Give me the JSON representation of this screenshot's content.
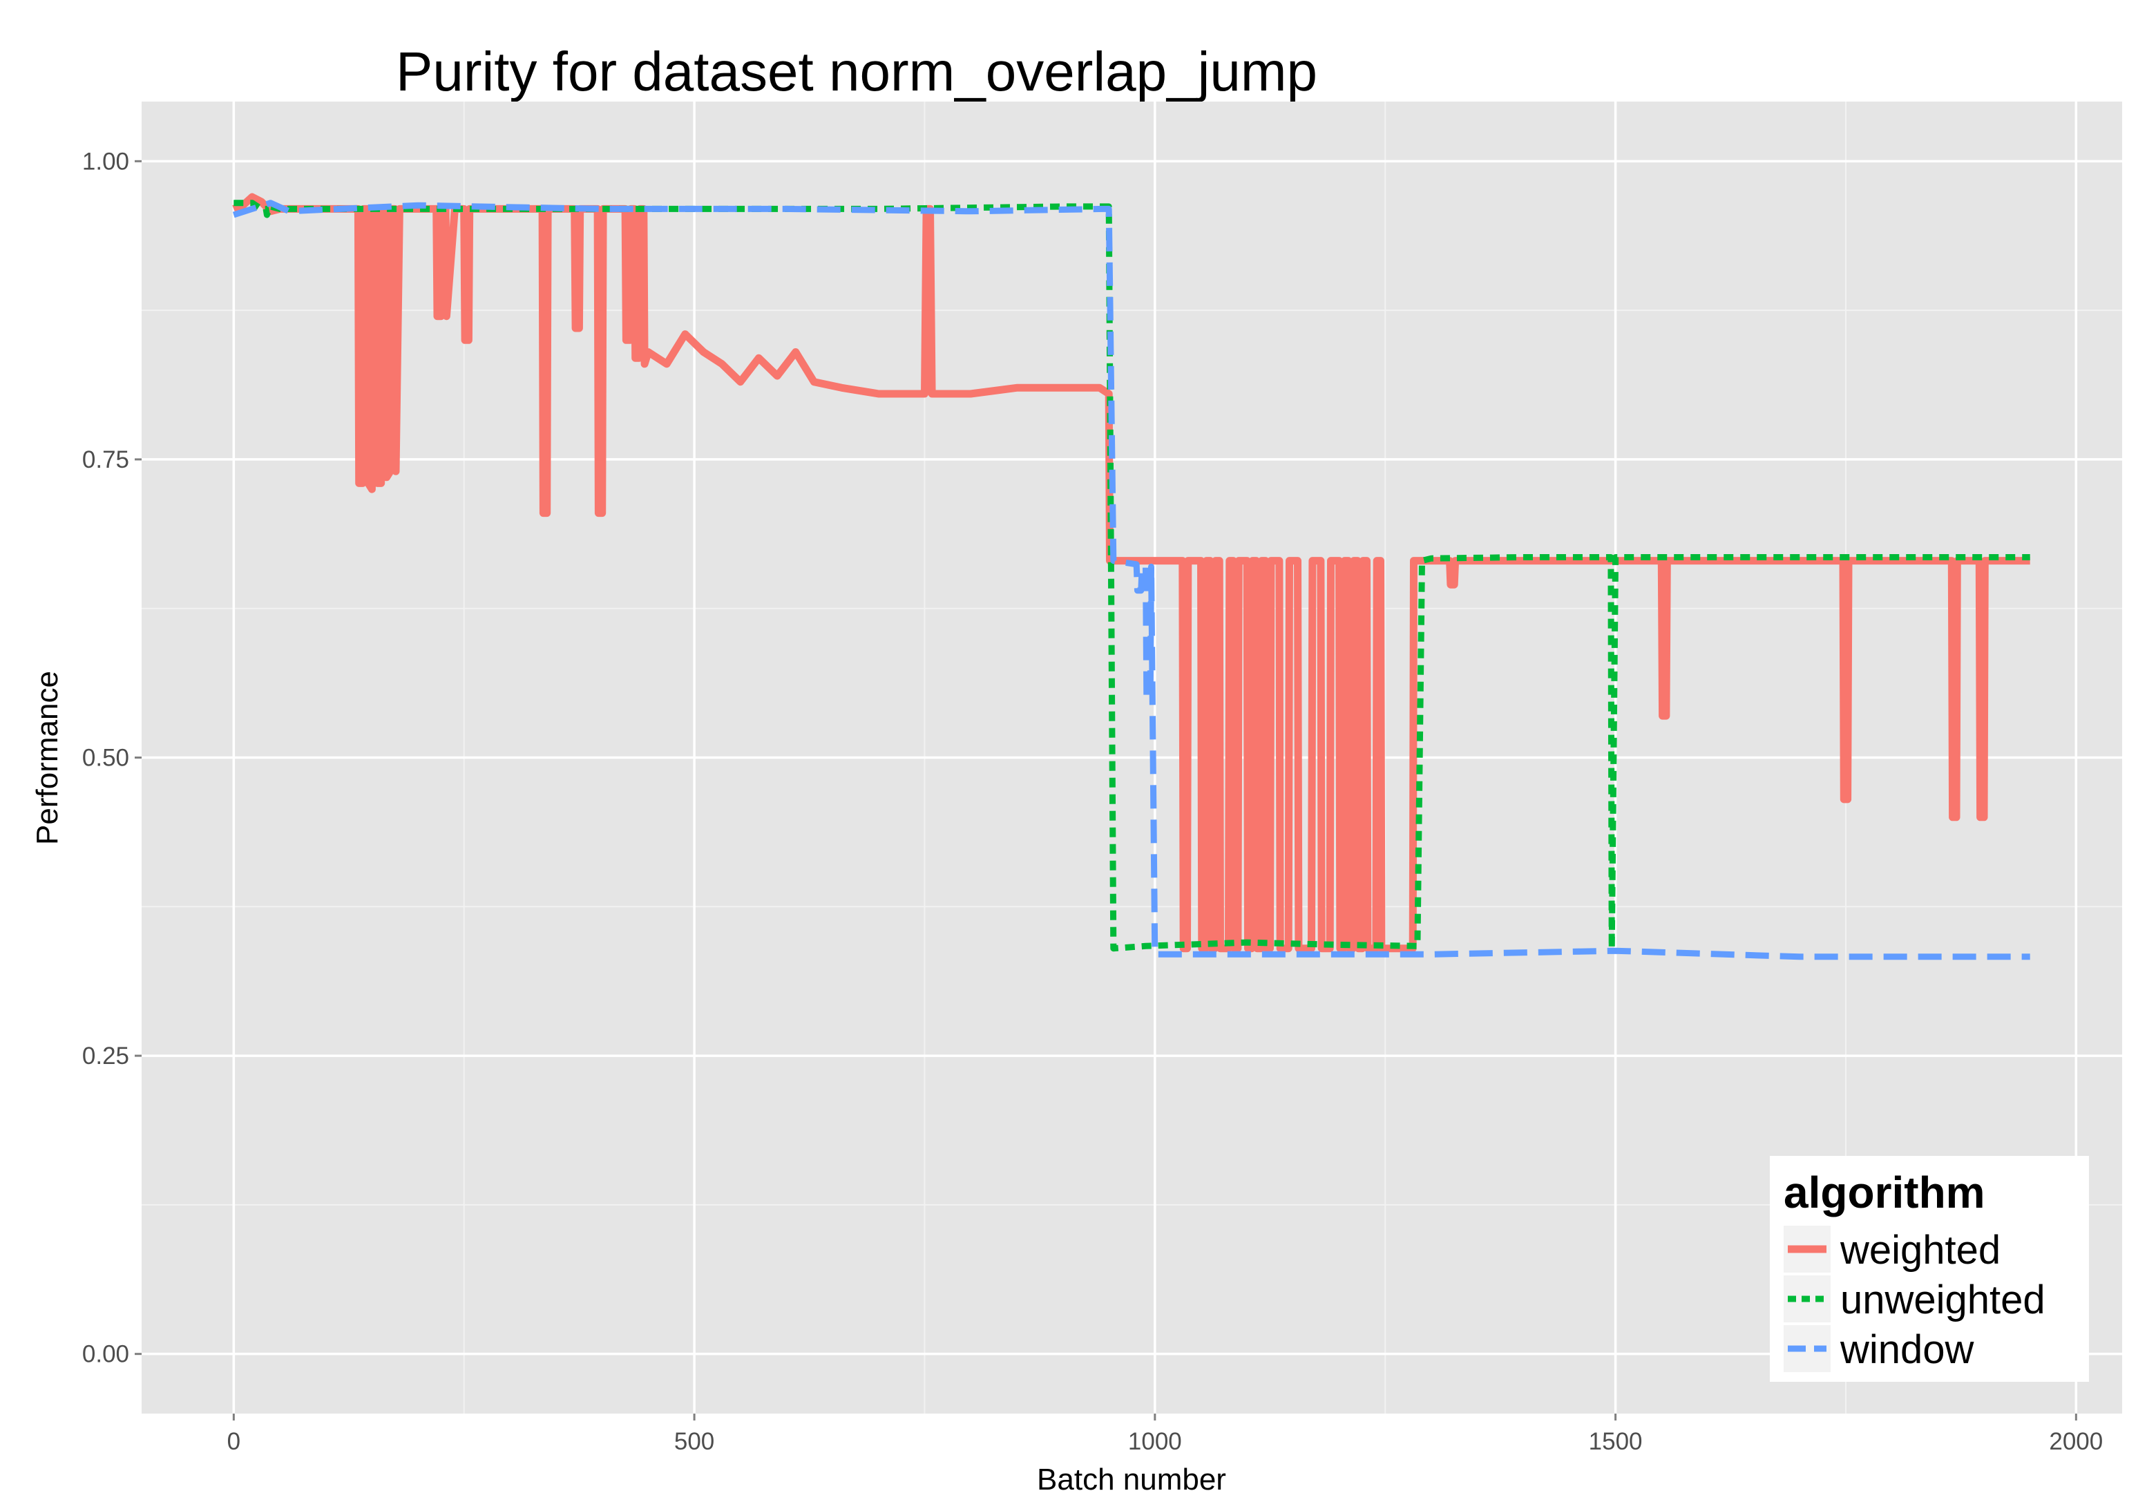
{
  "chart_data": {
    "type": "line",
    "title": "Purity for dataset norm_overlap_jump",
    "xlabel": "Batch number",
    "ylabel": "Performance",
    "xlim": [
      -100,
      2050
    ],
    "ylim": [
      -0.05,
      1.05
    ],
    "x_ticks": [
      0,
      500,
      1000,
      1500,
      2000
    ],
    "x_tick_labels": [
      "0",
      "500",
      "1000",
      "1500",
      "2000"
    ],
    "y_ticks": [
      0,
      0.25,
      0.5,
      0.75,
      1.0
    ],
    "y_tick_labels": [
      "0.00",
      "0.25",
      "0.50",
      "0.75",
      "1.00"
    ],
    "grid": true,
    "legend": {
      "title": "algorithm",
      "position": "bottom-right"
    },
    "colors": {
      "panel": "#e5e5e5",
      "grid": "#ffffff",
      "weighted": "#f8766d",
      "unweighted": "#00ba38",
      "window": "#619cff"
    },
    "series": [
      {
        "name": "weighted",
        "color": "#f8766d",
        "dash": "solid",
        "x": [
          0,
          10,
          20,
          30,
          40,
          50,
          100,
          135,
          136,
          140,
          141,
          145,
          146,
          150,
          151,
          155,
          156,
          160,
          161,
          165,
          166,
          170,
          171,
          175,
          176,
          180,
          220,
          221,
          225,
          226,
          230,
          231,
          240,
          250,
          251,
          255,
          256,
          300,
          335,
          336,
          340,
          341,
          370,
          371,
          375,
          376,
          395,
          396,
          400,
          401,
          425,
          426,
          430,
          431,
          435,
          436,
          440,
          441,
          445,
          446,
          450,
          470,
          490,
          510,
          530,
          550,
          570,
          590,
          610,
          630,
          660,
          700,
          750,
          752,
          756,
          758,
          800,
          850,
          900,
          940,
          950,
          951,
          955,
          990,
          1020,
          1030,
          1031,
          1035,
          1036,
          1040,
          1041,
          1050,
          1051,
          1055,
          1056,
          1060,
          1061,
          1065,
          1066,
          1070,
          1071,
          1080,
          1081,
          1085,
          1086,
          1090,
          1091,
          1100,
          1101,
          1105,
          1106,
          1110,
          1111,
          1115,
          1116,
          1120,
          1121,
          1125,
          1126,
          1135,
          1136,
          1145,
          1146,
          1155,
          1156,
          1170,
          1171,
          1180,
          1181,
          1190,
          1191,
          1200,
          1201,
          1205,
          1206,
          1210,
          1211,
          1215,
          1216,
          1220,
          1221,
          1225,
          1226,
          1230,
          1231,
          1240,
          1241,
          1245,
          1246,
          1250,
          1270,
          1280,
          1281,
          1290,
          1300,
          1320,
          1321,
          1325,
          1326,
          1400,
          1500,
          1550,
          1551,
          1555,
          1556,
          1600,
          1700,
          1747,
          1748,
          1752,
          1753,
          1800,
          1865,
          1866,
          1870,
          1871,
          1895,
          1896,
          1900,
          1901,
          1950
        ],
        "values": [
          0.96,
          0.963,
          0.97,
          0.966,
          0.958,
          0.96,
          0.96,
          0.96,
          0.73,
          0.73,
          0.96,
          0.96,
          0.73,
          0.725,
          0.96,
          0.96,
          0.73,
          0.73,
          0.96,
          0.96,
          0.735,
          0.74,
          0.96,
          0.96,
          0.74,
          0.96,
          0.96,
          0.87,
          0.87,
          0.96,
          0.96,
          0.87,
          0.96,
          0.96,
          0.85,
          0.85,
          0.96,
          0.96,
          0.96,
          0.705,
          0.705,
          0.96,
          0.96,
          0.86,
          0.86,
          0.96,
          0.96,
          0.705,
          0.705,
          0.96,
          0.96,
          0.85,
          0.85,
          0.96,
          0.96,
          0.835,
          0.835,
          0.96,
          0.96,
          0.83,
          0.84,
          0.83,
          0.855,
          0.84,
          0.83,
          0.815,
          0.835,
          0.82,
          0.84,
          0.815,
          0.81,
          0.805,
          0.805,
          0.96,
          0.96,
          0.805,
          0.805,
          0.81,
          0.81,
          0.81,
          0.805,
          0.665,
          0.665,
          0.665,
          0.665,
          0.665,
          0.34,
          0.34,
          0.665,
          0.665,
          0.665,
          0.665,
          0.34,
          0.34,
          0.665,
          0.665,
          0.34,
          0.34,
          0.665,
          0.665,
          0.34,
          0.34,
          0.665,
          0.665,
          0.34,
          0.34,
          0.665,
          0.665,
          0.34,
          0.34,
          0.665,
          0.665,
          0.34,
          0.34,
          0.665,
          0.665,
          0.34,
          0.34,
          0.665,
          0.665,
          0.34,
          0.34,
          0.665,
          0.665,
          0.34,
          0.34,
          0.665,
          0.665,
          0.34,
          0.34,
          0.665,
          0.665,
          0.34,
          0.34,
          0.665,
          0.665,
          0.34,
          0.34,
          0.665,
          0.665,
          0.34,
          0.34,
          0.665,
          0.665,
          0.34,
          0.34,
          0.665,
          0.665,
          0.34,
          0.34,
          0.34,
          0.34,
          0.665,
          0.665,
          0.665,
          0.665,
          0.645,
          0.645,
          0.665,
          0.665,
          0.665,
          0.665,
          0.535,
          0.535,
          0.665,
          0.665,
          0.665,
          0.665,
          0.465,
          0.465,
          0.665,
          0.665,
          0.665,
          0.45,
          0.45,
          0.665,
          0.665,
          0.45,
          0.45,
          0.665,
          0.665
        ]
      },
      {
        "name": "unweighted",
        "color": "#00ba38",
        "dash": "dotted",
        "x": [
          0,
          20,
          30,
          35,
          36,
          40,
          50,
          300,
          500,
          700,
          900,
          950,
          955,
          990,
          1100,
          1200,
          1285,
          1290,
          1300,
          1400,
          1495,
          1496,
          1500,
          1600,
          1800,
          1950
        ],
        "values": [
          0.965,
          0.965,
          0.96,
          0.96,
          0.955,
          0.962,
          0.96,
          0.96,
          0.96,
          0.96,
          0.962,
          0.962,
          0.34,
          0.342,
          0.345,
          0.343,
          0.342,
          0.665,
          0.667,
          0.668,
          0.668,
          0.34,
          0.668,
          0.668,
          0.668,
          0.668
        ]
      },
      {
        "name": "window",
        "color": "#619cff",
        "dash": "dashed",
        "x": [
          0,
          20,
          40,
          60,
          200,
          400,
          600,
          800,
          945,
          950,
          955,
          980,
          981,
          985,
          986,
          990,
          991,
          995,
          996,
          1000,
          1100,
          1300,
          1500,
          1700,
          1950
        ],
        "values": [
          0.955,
          0.96,
          0.965,
          0.958,
          0.963,
          0.96,
          0.96,
          0.958,
          0.96,
          0.96,
          0.665,
          0.662,
          0.64,
          0.64,
          0.66,
          0.66,
          0.55,
          0.55,
          0.66,
          0.335,
          0.335,
          0.335,
          0.338,
          0.333,
          0.333
        ]
      }
    ]
  }
}
